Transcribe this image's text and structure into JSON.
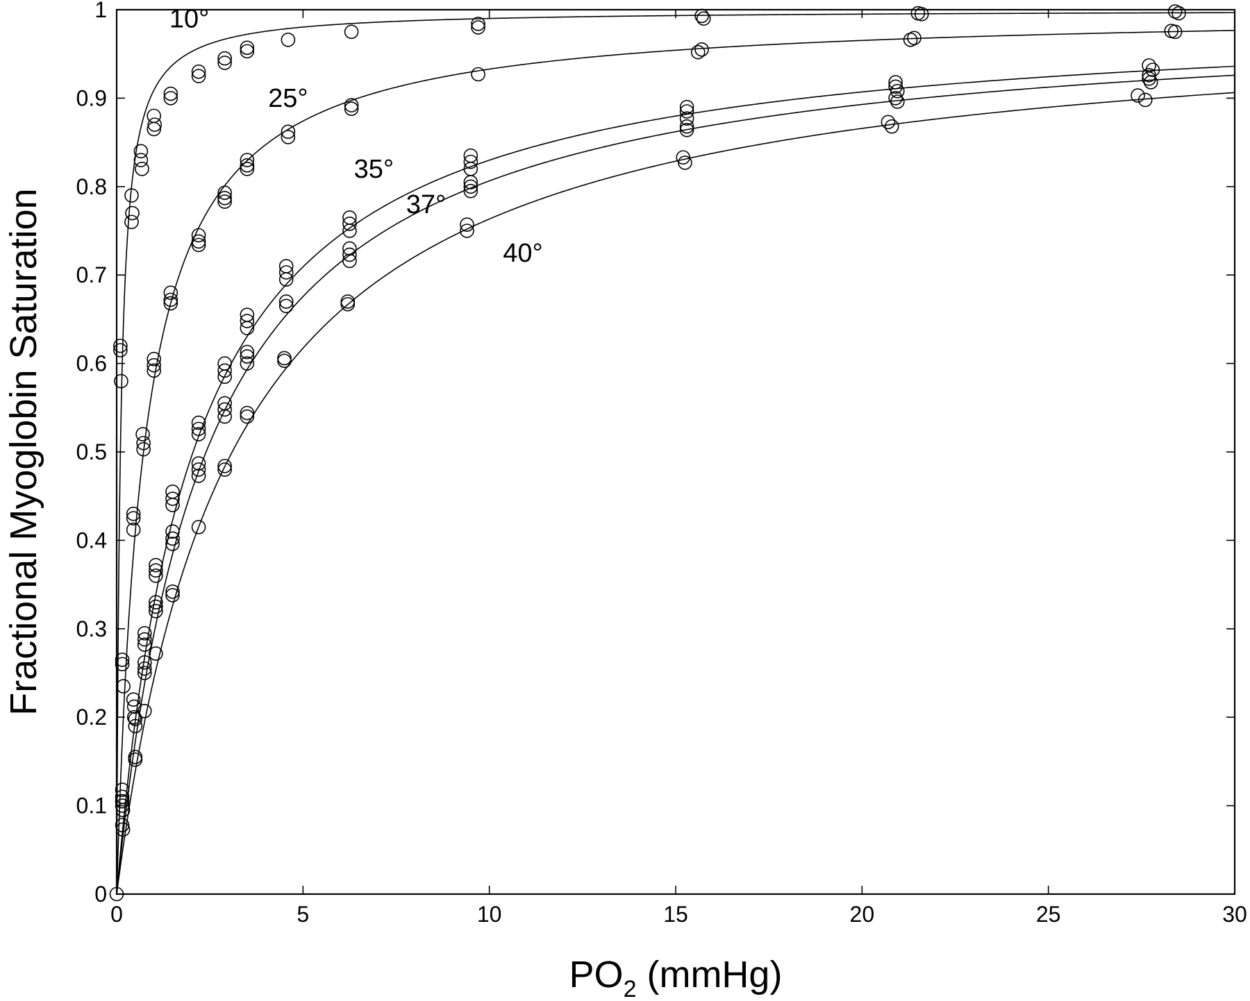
{
  "chart_data": {
    "type": "scatter",
    "xlabel_main": "PO",
    "xlabel_sub": "2",
    "xlabel_rest": " (mmHg)",
    "ylabel": "Fractional Myoglobin Saturation",
    "xlim": [
      0,
      30
    ],
    "ylim": [
      0,
      1
    ],
    "x_ticks": [
      0,
      5,
      10,
      15,
      20,
      25,
      30
    ],
    "y_ticks": [
      0,
      0.1,
      0.2,
      0.3,
      0.4,
      0.5,
      0.6,
      0.7,
      0.8,
      0.9,
      1
    ],
    "x_tick_labels": [
      "0",
      "5",
      "10",
      "15",
      "20",
      "25",
      "30"
    ],
    "y_tick_labels": [
      "0",
      "0.1",
      "0.2",
      "0.3",
      "0.4",
      "0.5",
      "0.6",
      "0.7",
      "0.8",
      "0.9",
      "1"
    ],
    "grid": false,
    "fit_line_color": "#000000",
    "marker": "open-circle",
    "series": [
      {
        "name": "10°",
        "p50": 0.1,
        "label_at": [
          1.95,
          0.98
        ],
        "points": [
          [
            0.1,
            0.62
          ],
          [
            0.1,
            0.615
          ],
          [
            0.12,
            0.58
          ],
          [
            0.4,
            0.79
          ],
          [
            0.42,
            0.77
          ],
          [
            0.4,
            0.76
          ],
          [
            0.65,
            0.84
          ],
          [
            0.65,
            0.83
          ],
          [
            0.68,
            0.82
          ],
          [
            1.0,
            0.88
          ],
          [
            1.02,
            0.87
          ],
          [
            1.0,
            0.865
          ],
          [
            1.45,
            0.905
          ],
          [
            1.45,
            0.9
          ],
          [
            2.2,
            0.93
          ],
          [
            2.2,
            0.925
          ],
          [
            2.9,
            0.945
          ],
          [
            2.9,
            0.94
          ],
          [
            3.5,
            0.957
          ],
          [
            3.5,
            0.953
          ],
          [
            4.6,
            0.966
          ],
          [
            6.3,
            0.975
          ],
          [
            9.7,
            0.984
          ],
          [
            9.7,
            0.98
          ],
          [
            15.7,
            0.993
          ],
          [
            15.75,
            0.99
          ],
          [
            21.5,
            0.996
          ],
          [
            21.6,
            0.995
          ],
          [
            28.4,
            0.998
          ],
          [
            28.5,
            0.996
          ]
        ]
      },
      {
        "name": "25°",
        "p50": 0.72,
        "label_at": [
          4.6,
          0.89
        ],
        "points": [
          [
            0.15,
            0.265
          ],
          [
            0.15,
            0.26
          ],
          [
            0.18,
            0.235
          ],
          [
            0.45,
            0.43
          ],
          [
            0.45,
            0.425
          ],
          [
            0.45,
            0.412
          ],
          [
            0.7,
            0.52
          ],
          [
            0.72,
            0.51
          ],
          [
            0.72,
            0.503
          ],
          [
            1.0,
            0.605
          ],
          [
            1.0,
            0.598
          ],
          [
            1.0,
            0.592
          ],
          [
            1.45,
            0.68
          ],
          [
            1.45,
            0.672
          ],
          [
            1.45,
            0.668
          ],
          [
            2.2,
            0.745
          ],
          [
            2.2,
            0.738
          ],
          [
            2.2,
            0.734
          ],
          [
            2.9,
            0.793
          ],
          [
            2.9,
            0.787
          ],
          [
            2.9,
            0.783
          ],
          [
            3.5,
            0.83
          ],
          [
            3.5,
            0.824
          ],
          [
            3.5,
            0.82
          ],
          [
            4.6,
            0.862
          ],
          [
            4.6,
            0.856
          ],
          [
            6.3,
            0.892
          ],
          [
            6.3,
            0.888
          ],
          [
            9.7,
            0.927
          ],
          [
            15.7,
            0.955
          ],
          [
            15.6,
            0.952
          ],
          [
            21.4,
            0.968
          ],
          [
            21.3,
            0.966
          ],
          [
            28.3,
            0.976
          ],
          [
            28.4,
            0.975
          ]
        ]
      },
      {
        "name": "35°",
        "p50": 2.05,
        "label_at": [
          6.9,
          0.81
        ],
        "points": [
          [
            0.15,
            0.118
          ],
          [
            0.15,
            0.11
          ],
          [
            0.15,
            0.105
          ],
          [
            0.45,
            0.22
          ],
          [
            0.47,
            0.212
          ],
          [
            0.47,
            0.2
          ],
          [
            0.75,
            0.295
          ],
          [
            0.75,
            0.288
          ],
          [
            0.75,
            0.282
          ],
          [
            1.05,
            0.372
          ],
          [
            1.05,
            0.366
          ],
          [
            1.05,
            0.36
          ],
          [
            1.5,
            0.455
          ],
          [
            1.5,
            0.447
          ],
          [
            1.5,
            0.44
          ],
          [
            2.2,
            0.533
          ],
          [
            2.2,
            0.526
          ],
          [
            2.2,
            0.52
          ],
          [
            2.9,
            0.6
          ],
          [
            2.9,
            0.592
          ],
          [
            2.9,
            0.585
          ],
          [
            3.5,
            0.655
          ],
          [
            3.5,
            0.648
          ],
          [
            3.5,
            0.64
          ],
          [
            4.55,
            0.71
          ],
          [
            4.55,
            0.703
          ],
          [
            4.55,
            0.695
          ],
          [
            6.25,
            0.765
          ],
          [
            6.25,
            0.758
          ],
          [
            6.25,
            0.75
          ],
          [
            9.5,
            0.835
          ],
          [
            9.5,
            0.828
          ],
          [
            9.5,
            0.82
          ],
          [
            15.3,
            0.89
          ],
          [
            15.3,
            0.885
          ],
          [
            15.3,
            0.877
          ],
          [
            20.9,
            0.918
          ],
          [
            20.9,
            0.913
          ],
          [
            20.95,
            0.908
          ],
          [
            27.7,
            0.937
          ],
          [
            27.8,
            0.932
          ],
          [
            27.7,
            0.926
          ]
        ]
      },
      {
        "name": "37°",
        "p50": 2.4,
        "label_at": [
          8.3,
          0.77
        ],
        "points": [
          [
            0.15,
            0.105
          ],
          [
            0.15,
            0.1
          ],
          [
            0.17,
            0.095
          ],
          [
            0.5,
            0.198
          ],
          [
            0.5,
            0.19
          ],
          [
            0.75,
            0.262
          ],
          [
            0.75,
            0.255
          ],
          [
            0.75,
            0.25
          ],
          [
            1.05,
            0.33
          ],
          [
            1.05,
            0.325
          ],
          [
            1.05,
            0.32
          ],
          [
            1.5,
            0.41
          ],
          [
            1.5,
            0.402
          ],
          [
            1.5,
            0.396
          ],
          [
            2.2,
            0.487
          ],
          [
            2.2,
            0.48
          ],
          [
            2.2,
            0.473
          ],
          [
            2.9,
            0.555
          ],
          [
            2.9,
            0.548
          ],
          [
            2.9,
            0.54
          ],
          [
            3.5,
            0.613
          ],
          [
            3.5,
            0.608
          ],
          [
            3.5,
            0.6
          ],
          [
            4.55,
            0.67
          ],
          [
            4.55,
            0.665
          ],
          [
            6.25,
            0.73
          ],
          [
            6.25,
            0.723
          ],
          [
            6.25,
            0.716
          ],
          [
            9.5,
            0.805
          ],
          [
            9.5,
            0.8
          ],
          [
            9.5,
            0.795
          ],
          [
            15.3,
            0.868
          ],
          [
            15.3,
            0.864
          ],
          [
            20.9,
            0.9
          ],
          [
            20.95,
            0.896
          ],
          [
            27.7,
            0.922
          ],
          [
            27.75,
            0.918
          ]
        ]
      },
      {
        "name": "40°",
        "p50": 3.1,
        "label_at": [
          10.9,
          0.715
        ],
        "points": [
          [
            0.15,
            0.078
          ],
          [
            0.17,
            0.073
          ],
          [
            0.5,
            0.155
          ],
          [
            0.5,
            0.152
          ],
          [
            0.75,
            0.207
          ],
          [
            1.05,
            0.272
          ],
          [
            1.5,
            0.342
          ],
          [
            1.5,
            0.338
          ],
          [
            2.2,
            0.415
          ],
          [
            2.9,
            0.484
          ],
          [
            2.9,
            0.48
          ],
          [
            3.5,
            0.544
          ],
          [
            3.5,
            0.54
          ],
          [
            4.5,
            0.606
          ],
          [
            4.5,
            0.603
          ],
          [
            6.2,
            0.67
          ],
          [
            6.2,
            0.667
          ],
          [
            9.4,
            0.757
          ],
          [
            9.4,
            0.75
          ],
          [
            15.2,
            0.833
          ],
          [
            15.25,
            0.827
          ],
          [
            20.7,
            0.873
          ],
          [
            20.8,
            0.868
          ],
          [
            27.4,
            0.903
          ],
          [
            27.6,
            0.898
          ]
        ]
      }
    ],
    "origin_point": [
      0,
      0
    ]
  }
}
